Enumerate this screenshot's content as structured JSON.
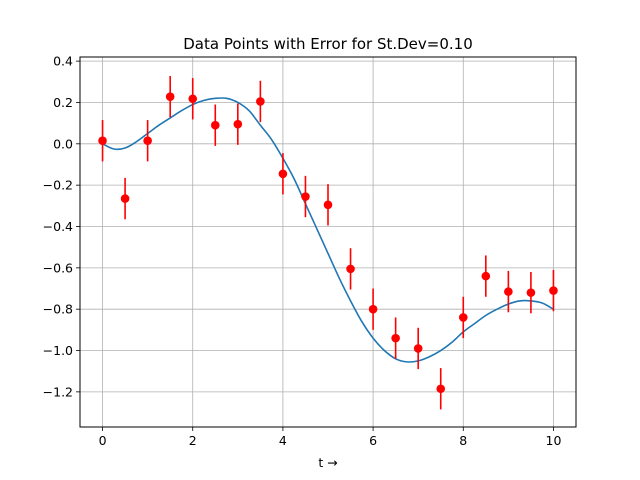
{
  "chart_data": {
    "type": "scatter",
    "title": "Data Points with Error for St.Dev=0.10",
    "xlabel": "t →",
    "ylabel": "",
    "xlim": [
      -0.5,
      10.5
    ],
    "ylim": [
      -1.37,
      0.42
    ],
    "grid": true,
    "x_ticks": [
      0,
      2,
      4,
      6,
      8,
      10
    ],
    "x_tick_labels": [
      "0",
      "2",
      "4",
      "6",
      "8",
      "10"
    ],
    "y_ticks": [
      -1.2,
      -1.0,
      -0.8,
      -0.6,
      -0.4,
      -0.2,
      0.0,
      0.2,
      0.4
    ],
    "y_tick_labels": [
      "−1.2",
      "−1.0",
      "−0.8",
      "−0.6",
      "−0.4",
      "−0.2",
      "0.0",
      "0.2",
      "0.4"
    ],
    "points": {
      "color": "#ff0000",
      "x": [
        0,
        0.5,
        1,
        1.5,
        2,
        2.5,
        3,
        3.5,
        4,
        4.5,
        5,
        5.5,
        6,
        6.5,
        7,
        7.5,
        8,
        8.5,
        9,
        9.5,
        10
      ],
      "y": [
        0.015,
        -0.265,
        0.015,
        0.228,
        0.218,
        0.09,
        0.095,
        0.205,
        -0.145,
        -0.255,
        -0.295,
        -0.605,
        -0.8,
        -0.94,
        -0.99,
        -1.185,
        -0.84,
        -0.64,
        -0.715,
        -0.72,
        -0.71
      ],
      "yerr": 0.1
    },
    "curve": {
      "color": "#1f77b4",
      "x": [
        0,
        0.25,
        0.5,
        0.75,
        1,
        1.25,
        1.5,
        1.75,
        2,
        2.25,
        2.5,
        2.75,
        3,
        3.25,
        3.5,
        3.75,
        4,
        4.25,
        4.5,
        4.75,
        5,
        5.25,
        5.5,
        5.75,
        6,
        6.25,
        6.5,
        6.75,
        7,
        7.25,
        7.5,
        7.75,
        8,
        8.25,
        8.5,
        8.75,
        9,
        9.25,
        9.5,
        9.75,
        10
      ],
      "y": [
        0,
        -0.025,
        -0.02,
        0.01,
        0.05,
        0.09,
        0.125,
        0.16,
        0.19,
        0.21,
        0.22,
        0.22,
        0.2,
        0.16,
        0.09,
        0.02,
        -0.07,
        -0.17,
        -0.29,
        -0.41,
        -0.53,
        -0.65,
        -0.76,
        -0.86,
        -0.94,
        -1.0,
        -1.04,
        -1.055,
        -1.05,
        -1.03,
        -1.0,
        -0.96,
        -0.91,
        -0.87,
        -0.83,
        -0.8,
        -0.775,
        -0.76,
        -0.76,
        -0.77,
        -0.8
      ]
    }
  }
}
